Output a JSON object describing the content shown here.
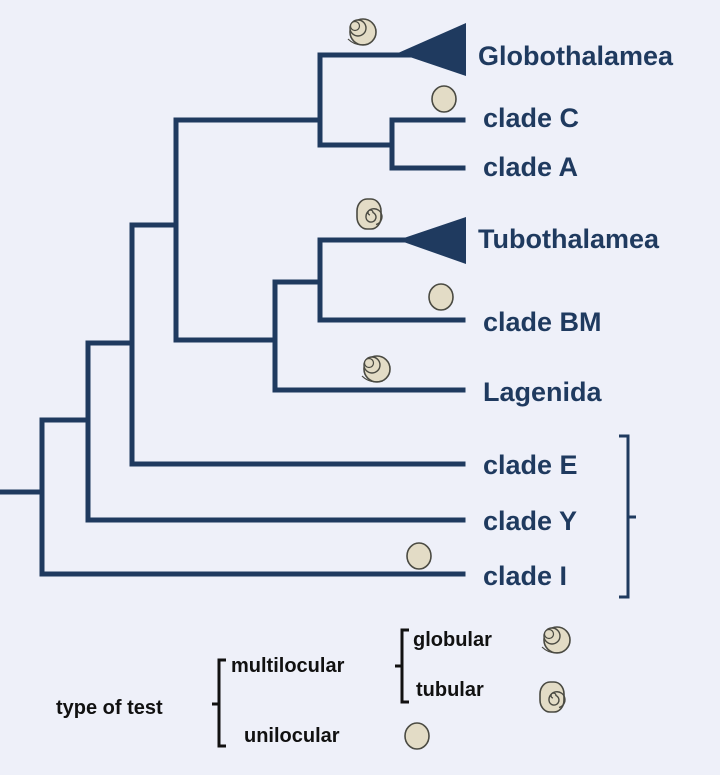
{
  "colors": {
    "background": "#eef0f9",
    "branch": "#1f3a5f",
    "icon_fill": "#e3dcc6",
    "icon_stroke": "#4a4a42"
  },
  "taxa": {
    "globothalamea": "Globothalamea",
    "clade_c": "clade C",
    "clade_a": "clade A",
    "tubothalamea": "Tubothalamea",
    "clade_bm": "clade BM",
    "lagenida": "Lagenida",
    "clade_e": "clade E",
    "clade_y": "clade Y",
    "clade_i": "clade I"
  },
  "icons": {
    "globothalamea": "globular-test-icon",
    "clade_c": "unilocular-test-icon",
    "tubothalamea": "tubular-test-icon",
    "clade_bm": "unilocular-test-icon",
    "lagenida": "globular-test-icon",
    "clade_i": "unilocular-test-icon"
  },
  "legend": {
    "title": "type of test",
    "multilocular": "multilocular",
    "globular": "globular",
    "tubular": "tubular",
    "unilocular": "unilocular"
  }
}
